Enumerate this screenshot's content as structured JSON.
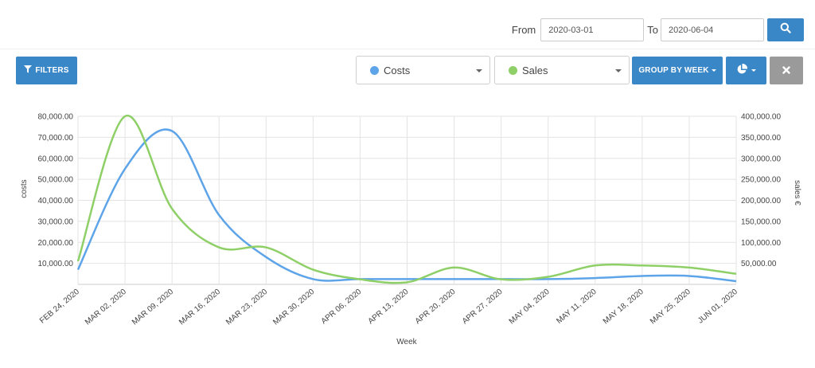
{
  "date_filter": {
    "from_label": "From",
    "from_value": "2020-03-01",
    "to_label": "To",
    "to_value": "2020-06-04"
  },
  "toolbar": {
    "filters_label": "FILTERS",
    "costs_label": "Costs",
    "costs_color": "#5ea4e8",
    "sales_label": "Sales",
    "sales_color": "#8ed067",
    "group_label": "GROUP BY WEEK",
    "primary_color": "#3a87c8"
  },
  "chart_data": {
    "type": "line",
    "xlabel": "Week",
    "ylabel_left": "costs",
    "ylabel_right": "sales €",
    "categories": [
      "FEB 24, 2020",
      "MAR 02, 2020",
      "MAR 09, 2020",
      "MAR 16, 2020",
      "MAR 23, 2020",
      "MAR 30, 2020",
      "APR 06, 2020",
      "APR 13, 2020",
      "APR 20, 2020",
      "APR 27, 2020",
      "MAY 04, 2020",
      "MAY 11, 2020",
      "MAY 18, 2020",
      "MAY 25, 2020",
      "JUN 01, 2020"
    ],
    "ylim_left": [
      0,
      80000
    ],
    "yticks_left": [
      "10,000.00",
      "20,000.00",
      "30,000.00",
      "40,000.00",
      "50,000.00",
      "60,000.00",
      "70,000.00",
      "80,000.00"
    ],
    "ylim_right": [
      0,
      400000
    ],
    "yticks_right": [
      "50,000.00",
      "100,000.00",
      "150,000.00",
      "200,000.00",
      "250,000.00",
      "300,000.00",
      "350,000.00",
      "400,000.00"
    ],
    "grid": true,
    "series": [
      {
        "name": "Costs",
        "axis": "left",
        "color": "#5ea4e8",
        "values": [
          7000,
          55000,
          73000,
          33000,
          13000,
          2500,
          2500,
          2500,
          2500,
          2500,
          2500,
          3000,
          4000,
          4000,
          1500
        ]
      },
      {
        "name": "Sales",
        "axis": "right",
        "color": "#8ed067",
        "values": [
          55000,
          400000,
          180000,
          88000,
          88000,
          35000,
          12000,
          5000,
          40000,
          12000,
          18000,
          45000,
          45000,
          40000,
          25000
        ]
      }
    ]
  }
}
